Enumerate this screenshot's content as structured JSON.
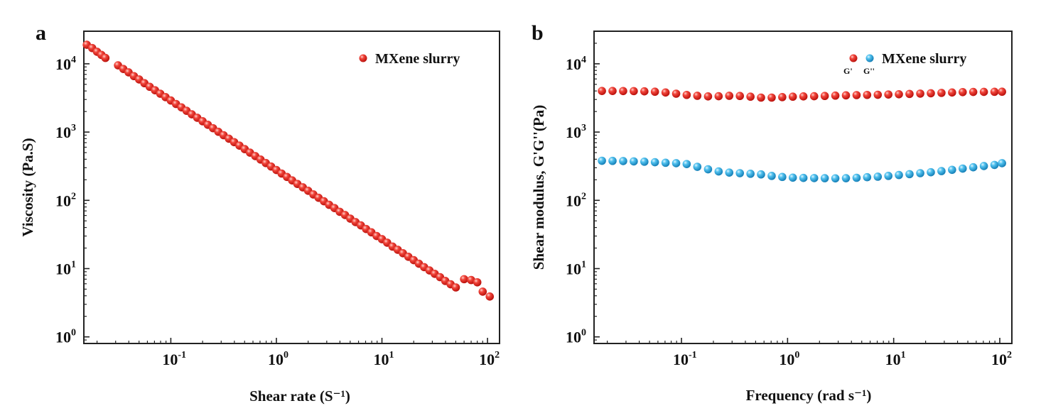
{
  "figure_panels": [
    "a",
    "b"
  ],
  "chart_data": [
    {
      "panel": "a",
      "type": "scatter",
      "xscale": "log",
      "yscale": "log",
      "xlabel": "Shear rate (S⁻¹)",
      "ylabel": "Viscosity (Pa.S)",
      "xlim": [
        0.015,
        130
      ],
      "ylim": [
        0.8,
        30000
      ],
      "xticks": [
        {
          "base": "10",
          "exp": "-1",
          "value": 0.1
        },
        {
          "base": "10",
          "exp": "0",
          "value": 1
        },
        {
          "base": "10",
          "exp": "1",
          "value": 10
        },
        {
          "base": "10",
          "exp": "2",
          "value": 100
        }
      ],
      "yticks": [
        {
          "base": "10",
          "exp": "0",
          "value": 1
        },
        {
          "base": "10",
          "exp": "1",
          "value": 10
        },
        {
          "base": "10",
          "exp": "2",
          "value": 100
        },
        {
          "base": "10",
          "exp": "3",
          "value": 1000
        },
        {
          "base": "10",
          "exp": "4",
          "value": 10000
        }
      ],
      "legend": {
        "position": "top-right",
        "entries": [
          "MXene slurry"
        ]
      },
      "series": [
        {
          "name": "MXene slurry",
          "color": "#e8201c",
          "x": [
            0.016,
            0.018,
            0.02,
            0.022,
            0.024,
            0.0316,
            0.0355,
            0.0398,
            0.0447,
            0.0501,
            0.0562,
            0.0631,
            0.0708,
            0.0794,
            0.0891,
            0.1,
            0.112,
            0.126,
            0.141,
            0.158,
            0.178,
            0.2,
            0.224,
            0.251,
            0.282,
            0.316,
            0.355,
            0.398,
            0.447,
            0.501,
            0.562,
            0.631,
            0.708,
            0.794,
            0.891,
            1.0,
            1.12,
            1.26,
            1.41,
            1.58,
            1.78,
            2.0,
            2.24,
            2.51,
            2.82,
            3.16,
            3.55,
            3.98,
            4.47,
            5.01,
            5.62,
            6.31,
            7.08,
            7.94,
            8.91,
            10.0,
            11.2,
            12.6,
            14.1,
            15.8,
            17.8,
            20.0,
            22.4,
            25.1,
            28.2,
            31.6,
            35.5,
            39.8,
            44.7,
            50.1,
            60,
            70,
            80,
            90,
            105
          ],
          "y": [
            19000,
            17000,
            15000,
            13500,
            12200,
            9500,
            8400,
            7500,
            6600,
            5900,
            5200,
            4600,
            4100,
            3650,
            3250,
            2900,
            2580,
            2300,
            2050,
            1820,
            1620,
            1440,
            1280,
            1140,
            1010,
            900,
            800,
            712,
            633,
            563,
            500,
            445,
            396,
            352,
            313,
            278,
            247,
            220,
            196,
            174,
            155,
            138,
            122,
            109,
            97,
            86,
            77,
            68,
            61,
            54,
            48,
            43,
            38,
            34,
            30,
            27,
            24,
            21,
            18.9,
            16.8,
            14.9,
            13.3,
            11.8,
            10.5,
            9.4,
            8.4,
            7.5,
            6.6,
            5.9,
            5.3,
            7.0,
            6.8,
            6.3,
            4.6,
            3.9
          ]
        }
      ]
    },
    {
      "panel": "b",
      "type": "scatter",
      "xscale": "log",
      "yscale": "log",
      "xlabel": "Frequency (rad s⁻¹)",
      "ylabel": "Shear modulus, G'G''(Pa)",
      "xlim": [
        0.015,
        130
      ],
      "ylim": [
        0.8,
        30000
      ],
      "xticks": [
        {
          "base": "10",
          "exp": "-1",
          "value": 0.1
        },
        {
          "base": "10",
          "exp": "0",
          "value": 1
        },
        {
          "base": "10",
          "exp": "1",
          "value": 10
        },
        {
          "base": "10",
          "exp": "2",
          "value": 100
        }
      ],
      "yticks": [
        {
          "base": "10",
          "exp": "0",
          "value": 1
        },
        {
          "base": "10",
          "exp": "1",
          "value": 10
        },
        {
          "base": "10",
          "exp": "2",
          "value": 100
        },
        {
          "base": "10",
          "exp": "3",
          "value": 1000
        },
        {
          "base": "10",
          "exp": "4",
          "value": 10000
        }
      ],
      "legend": {
        "position": "top-right",
        "entries": [
          "MXene slurry"
        ],
        "sublabels": [
          "G'",
          "G''"
        ]
      },
      "series": [
        {
          "name": "G'",
          "color": "#e8201c",
          "x": [
            0.0178,
            0.0224,
            0.0282,
            0.0355,
            0.0447,
            0.0562,
            0.0708,
            0.0891,
            0.112,
            0.141,
            0.178,
            0.224,
            0.282,
            0.355,
            0.447,
            0.562,
            0.708,
            0.891,
            1.12,
            1.41,
            1.78,
            2.24,
            2.82,
            3.55,
            4.47,
            5.62,
            7.08,
            8.91,
            11.2,
            14.1,
            17.8,
            22.4,
            28.2,
            35.5,
            44.7,
            56.2,
            70.8,
            89.1,
            105
          ],
          "y": [
            4000,
            4000,
            3990,
            3980,
            3950,
            3900,
            3800,
            3650,
            3500,
            3400,
            3330,
            3350,
            3400,
            3380,
            3300,
            3200,
            3200,
            3250,
            3300,
            3330,
            3350,
            3380,
            3420,
            3450,
            3480,
            3500,
            3520,
            3550,
            3580,
            3620,
            3660,
            3700,
            3750,
            3800,
            3850,
            3870,
            3880,
            3890,
            3900
          ]
        },
        {
          "name": "G''",
          "color": "#2aa9e0",
          "x": [
            0.0178,
            0.0224,
            0.0282,
            0.0355,
            0.0447,
            0.0562,
            0.0708,
            0.0891,
            0.112,
            0.141,
            0.178,
            0.224,
            0.282,
            0.355,
            0.447,
            0.562,
            0.708,
            0.891,
            1.12,
            1.41,
            1.78,
            2.24,
            2.82,
            3.55,
            4.47,
            5.62,
            7.08,
            8.91,
            11.2,
            14.1,
            17.8,
            22.4,
            28.2,
            35.5,
            44.7,
            56.2,
            70.8,
            89.1,
            105
          ],
          "y": [
            380,
            378,
            376,
            372,
            368,
            362,
            355,
            350,
            340,
            310,
            285,
            265,
            255,
            250,
            245,
            240,
            228,
            220,
            215,
            213,
            212,
            211,
            210,
            211,
            214,
            218,
            222,
            228,
            235,
            242,
            250,
            258,
            268,
            280,
            292,
            305,
            318,
            330,
            350
          ]
        }
      ]
    }
  ]
}
